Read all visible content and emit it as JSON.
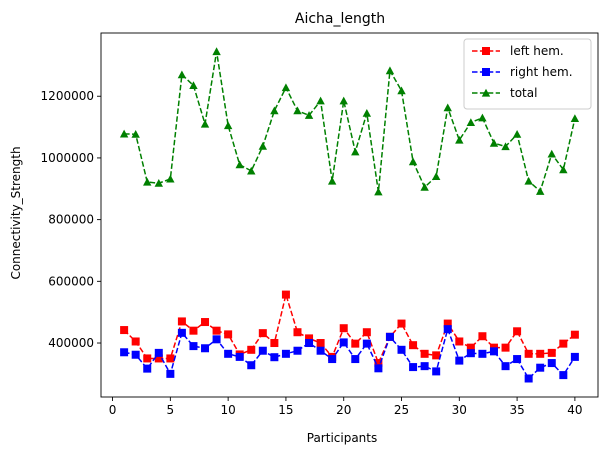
{
  "chart_data": {
    "type": "line",
    "title": "Aicha_length",
    "xlabel": "Participants",
    "ylabel": "Connectivity_Strength",
    "xlim": [
      -1,
      42
    ],
    "ylim": [
      225000,
      1405000
    ],
    "xticks": [
      0,
      5,
      10,
      15,
      20,
      25,
      30,
      35,
      40
    ],
    "yticks": [
      400000,
      600000,
      800000,
      1000000,
      1200000
    ],
    "grid": false,
    "legend_position": "top-right",
    "x": [
      1,
      2,
      3,
      4,
      5,
      6,
      7,
      8,
      9,
      10,
      11,
      12,
      13,
      14,
      15,
      16,
      17,
      18,
      19,
      20,
      21,
      22,
      23,
      24,
      25,
      26,
      27,
      28,
      29,
      30,
      31,
      32,
      33,
      34,
      35,
      36,
      37,
      38,
      39,
      40
    ],
    "series": [
      {
        "name": "left hem.",
        "color": "#ff0000",
        "marker": "square",
        "values": [
          442000,
          405000,
          350000,
          350000,
          350000,
          470000,
          440000,
          468000,
          440000,
          428000,
          363000,
          378000,
          432000,
          400000,
          557000,
          435000,
          415000,
          400000,
          355000,
          448000,
          398000,
          435000,
          335000,
          420000,
          463000,
          393000,
          365000,
          360000,
          463000,
          405000,
          385000,
          422000,
          385000,
          385000,
          438000,
          365000,
          365000,
          368000,
          398000,
          427000
        ]
      },
      {
        "name": "right hem.",
        "color": "#0000ff",
        "marker": "square",
        "values": [
          370000,
          362000,
          317000,
          368000,
          300000,
          433000,
          390000,
          383000,
          412000,
          365000,
          355000,
          328000,
          375000,
          354000,
          365000,
          375000,
          400000,
          375000,
          348000,
          402000,
          348000,
          398000,
          318000,
          420000,
          378000,
          322000,
          325000,
          308000,
          445000,
          343000,
          367000,
          365000,
          373000,
          325000,
          348000,
          285000,
          320000,
          335000,
          296000,
          355000
        ]
      },
      {
        "name": "total",
        "color": "#008000",
        "marker": "triangle",
        "values": [
          1078000,
          1077000,
          922000,
          918000,
          932000,
          1270000,
          1235000,
          1110000,
          1345000,
          1105000,
          978000,
          958000,
          1038000,
          1153000,
          1228000,
          1153000,
          1138000,
          1185000,
          925000,
          1185000,
          1020000,
          1145000,
          890000,
          1283000,
          1218000,
          988000,
          905000,
          940000,
          1163000,
          1058000,
          1115000,
          1130000,
          1048000,
          1037000,
          1077000,
          925000,
          892000,
          1013000,
          962000,
          1128000
        ]
      }
    ]
  }
}
